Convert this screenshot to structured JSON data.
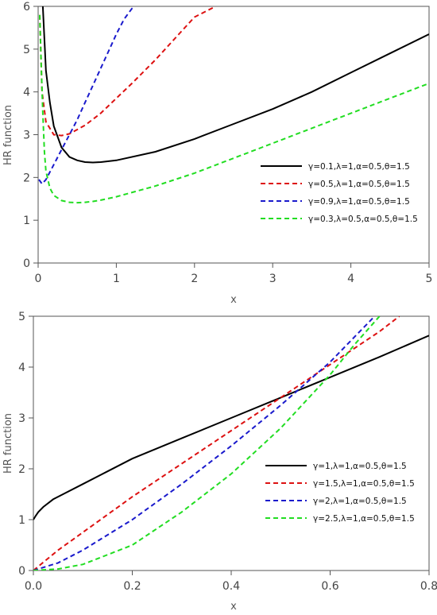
{
  "chart_data": [
    {
      "type": "line",
      "xlabel": "x",
      "ylabel": "HR function",
      "xlim": [
        0,
        5
      ],
      "ylim": [
        0,
        6
      ],
      "xticks": [
        "0",
        "1",
        "2",
        "3",
        "4",
        "5"
      ],
      "yticks": [
        "0",
        "1",
        "2",
        "3",
        "4",
        "5",
        "6"
      ],
      "legend_position": "center-right",
      "series": [
        {
          "name": "γ=0.1,λ=1,α=0.5,θ=1.5",
          "color": "#000000",
          "dash": "solid",
          "x": [
            0.06,
            0.1,
            0.15,
            0.2,
            0.3,
            0.4,
            0.5,
            0.6,
            0.7,
            0.8,
            1.0,
            1.5,
            2.0,
            2.5,
            3.0,
            3.5,
            4.0,
            4.5,
            5.0
          ],
          "y": [
            6.0,
            4.5,
            3.75,
            3.2,
            2.7,
            2.48,
            2.4,
            2.36,
            2.35,
            2.36,
            2.4,
            2.6,
            2.9,
            3.25,
            3.6,
            4.0,
            4.45,
            4.9,
            5.35
          ]
        },
        {
          "name": "γ=0.5,λ=1,α=0.5,θ=1.5",
          "color": "#dd1111",
          "dash": "dashed",
          "x": [
            0.02,
            0.05,
            0.1,
            0.2,
            0.3,
            0.4,
            0.6,
            0.8,
            1.0,
            1.2,
            1.5,
            1.8,
            2.0,
            2.27
          ],
          "y": [
            5.8,
            4.0,
            3.3,
            3.0,
            2.98,
            3.02,
            3.22,
            3.5,
            3.85,
            4.2,
            4.75,
            5.35,
            5.75,
            6.0
          ]
        },
        {
          "name": "γ=0.9,λ=1,α=0.5,θ=1.5",
          "color": "#1a1acc",
          "dash": "dashed",
          "x": [
            0.01,
            0.05,
            0.1,
            0.2,
            0.3,
            0.4,
            0.5,
            0.6,
            0.7,
            0.8,
            0.9,
            1.0,
            1.1,
            1.2,
            1.24
          ],
          "y": [
            1.95,
            1.85,
            1.95,
            2.3,
            2.65,
            3.0,
            3.35,
            3.75,
            4.15,
            4.55,
            4.95,
            5.35,
            5.7,
            5.95,
            6.0
          ]
        },
        {
          "name": "γ=0.3,λ=0.5,α=0.5,θ=1.5",
          "color": "#22dd22",
          "dash": "dashed",
          "x": [
            0.02,
            0.04,
            0.06,
            0.08,
            0.1,
            0.15,
            0.2,
            0.3,
            0.4,
            0.5,
            0.6,
            0.7,
            0.8,
            1.0,
            1.5,
            2.0,
            2.5,
            3.0,
            3.5,
            4.0,
            4.5,
            5.0
          ],
          "y": [
            5.8,
            4.6,
            3.5,
            2.6,
            2.15,
            1.75,
            1.58,
            1.46,
            1.42,
            1.41,
            1.42,
            1.44,
            1.47,
            1.55,
            1.8,
            2.1,
            2.45,
            2.8,
            3.15,
            3.5,
            3.85,
            4.2
          ]
        }
      ]
    },
    {
      "type": "line",
      "xlabel": "x",
      "ylabel": "HR function",
      "xlim": [
        0,
        0.8
      ],
      "ylim": [
        0,
        5
      ],
      "xticks": [
        "0.0",
        "0.2",
        "0.4",
        "0.6",
        "0.8"
      ],
      "yticks": [
        "0",
        "1",
        "2",
        "3",
        "4",
        "5"
      ],
      "legend_position": "lower-right",
      "series": [
        {
          "name": "γ=1,λ=1,α=0.5,θ=1.5",
          "color": "#000000",
          "dash": "solid",
          "x": [
            0.0,
            0.005,
            0.01,
            0.02,
            0.04,
            0.06,
            0.1,
            0.15,
            0.2,
            0.3,
            0.4,
            0.5,
            0.6,
            0.7,
            0.8
          ],
          "y": [
            1.0,
            1.08,
            1.15,
            1.25,
            1.4,
            1.5,
            1.7,
            1.95,
            2.2,
            2.6,
            3.0,
            3.4,
            3.8,
            4.2,
            4.62
          ]
        },
        {
          "name": "γ=1.5,λ=1,α=0.5,θ=1.5",
          "color": "#dd1111",
          "dash": "dashed",
          "x": [
            0.0,
            0.05,
            0.1,
            0.2,
            0.3,
            0.4,
            0.5,
            0.6,
            0.7,
            0.74
          ],
          "y": [
            0.0,
            0.4,
            0.75,
            1.45,
            2.1,
            2.75,
            3.4,
            4.05,
            4.7,
            5.0
          ]
        },
        {
          "name": "γ=2,λ=1,α=0.5,θ=1.5",
          "color": "#1a1acc",
          "dash": "dashed",
          "x": [
            0.0,
            0.05,
            0.1,
            0.2,
            0.3,
            0.4,
            0.5,
            0.6,
            0.65,
            0.69
          ],
          "y": [
            0.0,
            0.15,
            0.4,
            1.0,
            1.7,
            2.45,
            3.25,
            4.1,
            4.6,
            5.0
          ]
        },
        {
          "name": "γ=2.5,λ=1,α=0.5,θ=1.5",
          "color": "#22dd22",
          "dash": "dashed",
          "x": [
            0.0,
            0.05,
            0.1,
            0.2,
            0.3,
            0.4,
            0.5,
            0.6,
            0.65,
            0.7
          ],
          "y": [
            0.0,
            0.03,
            0.12,
            0.5,
            1.15,
            1.9,
            2.8,
            3.85,
            4.45,
            5.0
          ]
        }
      ]
    }
  ]
}
